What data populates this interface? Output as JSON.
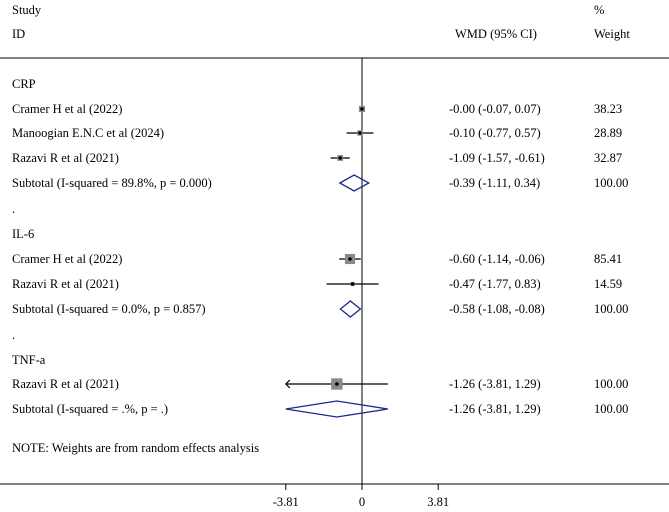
{
  "chart_data": {
    "type": "forest",
    "header": {
      "study_top": "Study",
      "study_id": "ID",
      "effect": "WMD (95% CI)",
      "weight_top": "%",
      "weight": "Weight"
    },
    "x_ticks": [
      {
        "value": -3.81,
        "label": "-3.81"
      },
      {
        "value": 0,
        "label": "0"
      },
      {
        "value": 3.81,
        "label": "3.81"
      }
    ],
    "groups": [
      {
        "name": "CRP",
        "studies": [
          {
            "label": "Cramer H et al (2022)",
            "est": -0.0,
            "lo": -0.07,
            "hi": 0.07,
            "ci_text": "-0.00 (-0.07, 0.07)",
            "weight": "38.23"
          },
          {
            "label": "Manoogian E.N.C et al (2024)",
            "est": -0.1,
            "lo": -0.77,
            "hi": 0.57,
            "ci_text": "-0.10 (-0.77, 0.57)",
            "weight": "28.89"
          },
          {
            "label": "Razavi R et al (2021)",
            "est": -1.09,
            "lo": -1.57,
            "hi": -0.61,
            "ci_text": "-1.09 (-1.57, -0.61)",
            "weight": "32.87"
          }
        ],
        "subtotal": {
          "label": "Subtotal  (I-squared = 89.8%, p = 0.000)",
          "est": -0.39,
          "lo": -1.11,
          "hi": 0.34,
          "ci_text": "-0.39 (-1.11, 0.34)",
          "weight": "100.00"
        }
      },
      {
        "name": "IL-6",
        "studies": [
          {
            "label": "Cramer H et al (2022)",
            "est": -0.6,
            "lo": -1.14,
            "hi": -0.06,
            "ci_text": "-0.60 (-1.14, -0.06)",
            "weight": "85.41"
          },
          {
            "label": "Razavi R et al (2021)",
            "est": -0.47,
            "lo": -1.77,
            "hi": 0.83,
            "ci_text": "-0.47 (-1.77, 0.83)",
            "weight": "14.59"
          }
        ],
        "subtotal": {
          "label": "Subtotal  (I-squared = 0.0%, p = 0.857)",
          "est": -0.58,
          "lo": -1.08,
          "hi": -0.08,
          "ci_text": "-0.58 (-1.08, -0.08)",
          "weight": "100.00"
        }
      },
      {
        "name": "TNF-a",
        "studies": [
          {
            "label": "Razavi R et al (2021)",
            "est": -1.26,
            "lo": -3.81,
            "hi": 1.29,
            "ci_text": "-1.26 (-3.81, 1.29)",
            "weight": "100.00"
          }
        ],
        "subtotal": {
          "label": "Subtotal  (I-squared = .%, p = .)",
          "est": -1.26,
          "lo": -3.81,
          "hi": 1.29,
          "ci_text": "-1.26 (-3.81, 1.29)",
          "weight": "100.00"
        }
      }
    ],
    "note": "NOTE: Weights are from random effects analysis",
    "colors": {
      "diamond": "#1f2a8c",
      "line": "#000000"
    }
  }
}
